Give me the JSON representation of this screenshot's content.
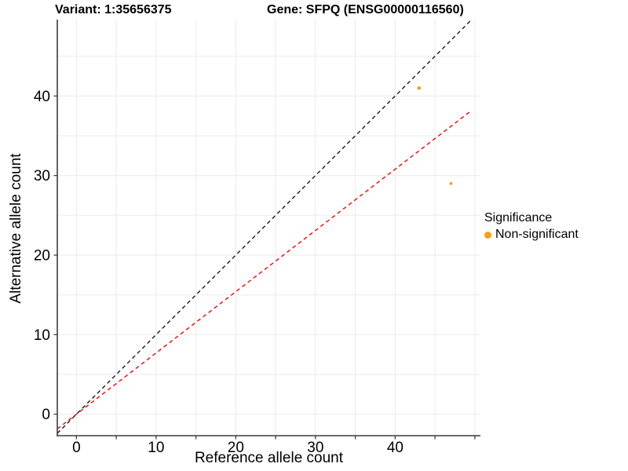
{
  "header": {
    "variant_title": "Variant: 1:35656375",
    "gene_title": "Gene: SFPQ (ENSG00000116560)"
  },
  "axes": {
    "x_label": "Reference allele count",
    "y_label": "Alternative allele count"
  },
  "legend": {
    "title": "Significance",
    "items": [
      {
        "label": "Non-significant",
        "color": "#FB9E17"
      }
    ]
  },
  "chart_data": {
    "type": "scatter",
    "title": "Variant: 1:35656375 — Gene: SFPQ (ENSG00000116560)",
    "xlabel": "Reference allele count",
    "ylabel": "Alternative allele count",
    "xlim": [
      -2.4,
      50.7
    ],
    "ylim": [
      -2.7,
      49.6
    ],
    "x_gridlines": [
      0,
      5,
      10,
      15,
      20,
      25,
      30,
      35,
      40,
      45,
      50
    ],
    "y_gridlines": [
      0,
      5,
      10,
      15,
      20,
      25,
      30,
      35,
      40,
      45
    ],
    "x_tick_marks": [
      0,
      5,
      10,
      15,
      20,
      25,
      30,
      35,
      40,
      45,
      50
    ],
    "y_tick_marks": [
      0,
      10,
      20,
      30,
      40
    ],
    "x_tick_labels": [
      0,
      10,
      20,
      30,
      40
    ],
    "y_tick_labels": [
      0,
      10,
      20,
      30,
      40
    ],
    "grid_on": true,
    "legend_position": "right",
    "series": [
      {
        "name": "Non-significant",
        "color": "#FB9E17",
        "points": [
          {
            "x": 43,
            "y": 41,
            "r": 2.3
          },
          {
            "x": 47,
            "y": 29,
            "r": 1.9
          }
        ]
      }
    ],
    "lines": [
      {
        "name": "identity-line",
        "slope": 1,
        "intercept": 0,
        "color": "#1A1A1A",
        "dashed": true,
        "x_range": [
          -2.4,
          50.7
        ]
      },
      {
        "name": "expected-ratio-line",
        "slope": 0.77,
        "intercept": 0,
        "color": "#FF0000",
        "dashed": true,
        "x_range": [
          -2.4,
          49.4
        ]
      }
    ],
    "colors": {
      "grid": "#EBEBEB",
      "axis": "#3C3C3C",
      "tick_text": "#000000"
    }
  }
}
